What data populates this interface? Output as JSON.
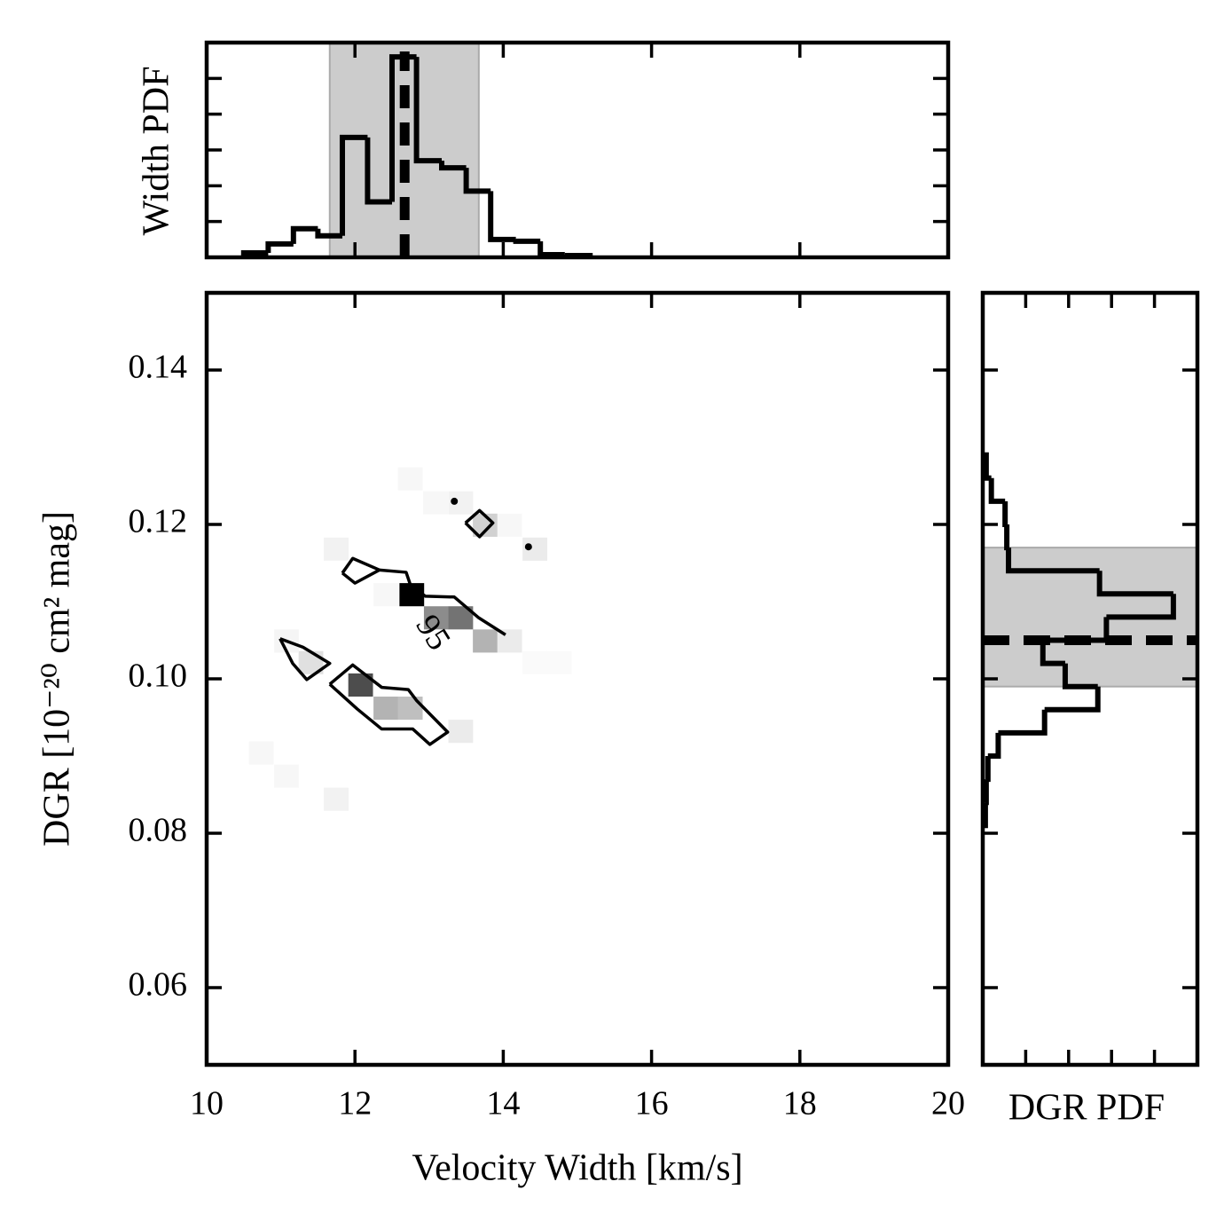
{
  "chart_data": [
    {
      "type": "heatmap",
      "xlabel": "Velocity Width [km/s]",
      "ylabel": "DGR [10⁻²⁰ cm² mag]",
      "xlim": [
        10,
        20
      ],
      "xticks": [
        10,
        12,
        14,
        16,
        18,
        20
      ],
      "ylim": [
        0.05,
        0.15
      ],
      "yticks": [
        0.06,
        0.08,
        {
          "value": 0.1,
          "label": "0.10"
        },
        0.12,
        0.14
      ],
      "tick_labels": true,
      "cmap": "gray_r",
      "line_color": "#000000",
      "cell_size": [
        0.333,
        0.003
      ],
      "cells": [
        {
          "x": 12.6,
          "y": 0.1094,
          "value": 1.0
        },
        {
          "x": 12.93,
          "y": 0.1064,
          "value": 0.45
        },
        {
          "x": 13.26,
          "y": 0.1064,
          "value": 0.55
        },
        {
          "x": 13.59,
          "y": 0.1034,
          "value": 0.3
        },
        {
          "x": 13.92,
          "y": 0.1034,
          "value": 0.08
        },
        {
          "x": 11.91,
          "y": 0.0977,
          "value": 0.7
        },
        {
          "x": 12.25,
          "y": 0.0947,
          "value": 0.3
        },
        {
          "x": 12.58,
          "y": 0.0947,
          "value": 0.25
        },
        {
          "x": 13.26,
          "y": 0.0917,
          "value": 0.08
        },
        {
          "x": 11.24,
          "y": 0.1006,
          "value": 0.12
        },
        {
          "x": 13.59,
          "y": 0.1184,
          "value": 0.18
        },
        {
          "x": 14.26,
          "y": 0.1153,
          "value": 0.08
        },
        {
          "x": 11.58,
          "y": 0.1153,
          "value": 0.05
        },
        {
          "x": 12.58,
          "y": 0.1244,
          "value": 0.03
        },
        {
          "x": 12.92,
          "y": 0.1213,
          "value": 0.03
        },
        {
          "x": 13.26,
          "y": 0.1213,
          "value": 0.05
        },
        {
          "x": 13.92,
          "y": 0.1184,
          "value": 0.03
        },
        {
          "x": 12.25,
          "y": 0.1094,
          "value": 0.03
        },
        {
          "x": 14.26,
          "y": 0.1006,
          "value": 0.02
        },
        {
          "x": 14.59,
          "y": 0.1006,
          "value": 0.02
        },
        {
          "x": 10.57,
          "y": 0.0889,
          "value": 0.03
        },
        {
          "x": 10.91,
          "y": 0.0859,
          "value": 0.03
        },
        {
          "x": 11.58,
          "y": 0.0829,
          "value": 0.05
        },
        {
          "x": 10.91,
          "y": 0.1034,
          "value": 0.04
        }
      ],
      "contour_level": 95,
      "contour_label_at": {
        "x": 13.02,
        "y": 0.1058
      },
      "contours": [
        {
          "x": [
            10.99,
            11.3,
            11.66,
            11.35,
            11.16,
            10.99
          ],
          "y": [
            0.1052,
            0.1041,
            0.102,
            0.0999,
            0.102,
            0.1052
          ]
        },
        {
          "x": [
            11.66,
            11.97,
            12.36,
            12.72,
            12.83,
            13.25,
            13.01,
            12.78,
            12.36,
            12.03,
            11.66
          ],
          "y": [
            0.0993,
            0.1018,
            0.0989,
            0.0986,
            0.0972,
            0.0931,
            0.0915,
            0.0935,
            0.0935,
            0.0961,
            0.0993
          ]
        },
        {
          "x": [
            11.83,
            11.97,
            12.33,
            12.0,
            11.83
          ],
          "y": [
            0.1137,
            0.1156,
            0.1141,
            0.1124,
            0.1137
          ]
        },
        {
          "x": [
            12.33,
            12.69,
            12.75,
            12.95,
            13.34,
            13.67,
            14.03
          ],
          "y": [
            0.1141,
            0.1138,
            0.1121,
            0.1107,
            0.1106,
            0.1079,
            0.1057
          ]
        },
        {
          "x": [
            13.49,
            13.68,
            13.86,
            13.68,
            13.49
          ],
          "y": [
            0.1202,
            0.1218,
            0.1202,
            0.1184,
            0.1202
          ]
        }
      ],
      "contour_points": {
        "x": [
          13.34,
          14.34
        ],
        "y": [
          0.123,
          0.1171
        ]
      }
    },
    {
      "type": "histogram",
      "orientation": "vertical",
      "ylabel": "Width PDF",
      "xlim": [
        10,
        20
      ],
      "xticks": [
        12,
        14,
        16,
        18
      ],
      "ylim": [
        0,
        1.2
      ],
      "yticks": [
        0.2,
        0.4,
        0.6,
        0.8,
        1.0
      ],
      "tick_labels": false,
      "line_color": "#000000",
      "shade_color": "#cccccc",
      "bins": [
        10.5,
        10.83,
        11.17,
        11.5,
        11.83,
        12.17,
        12.5,
        12.83,
        13.17,
        13.5,
        13.83,
        14.17,
        14.5,
        14.83,
        15.17
      ],
      "values": [
        0.025,
        0.075,
        0.16,
        0.12,
        0.67,
        0.31,
        1.12,
        0.54,
        0.5,
        0.37,
        0.1,
        0.09,
        0.015,
        0.01
      ],
      "shaded_range": [
        11.66,
        13.67
      ],
      "median": 12.67
    },
    {
      "type": "histogram",
      "orientation": "horizontal",
      "xlabel": "DGR PDF",
      "xlim": [
        0,
        1.25
      ],
      "xticks": [
        0.25,
        0.5,
        0.75,
        1.0
      ],
      "ylim": [
        0.05,
        0.15
      ],
      "yticks": [
        0.06,
        0.08,
        0.1,
        0.12,
        0.14
      ],
      "tick_labels": false,
      "line_color": "#000000",
      "shade_color": "#cccccc",
      "bins": [
        0.081,
        0.084,
        0.087,
        0.09,
        0.093,
        0.096,
        0.099,
        0.102,
        0.105,
        0.108,
        0.111,
        0.114,
        0.117,
        0.12,
        0.123,
        0.126,
        0.129
      ],
      "values": [
        0.015,
        0.02,
        0.03,
        0.09,
        0.36,
        0.67,
        0.48,
        0.35,
        0.72,
        1.11,
        0.68,
        0.15,
        0.14,
        0.13,
        0.05,
        0.02
      ],
      "shaded_range": [
        0.099,
        0.117
      ],
      "median": 0.105
    }
  ]
}
